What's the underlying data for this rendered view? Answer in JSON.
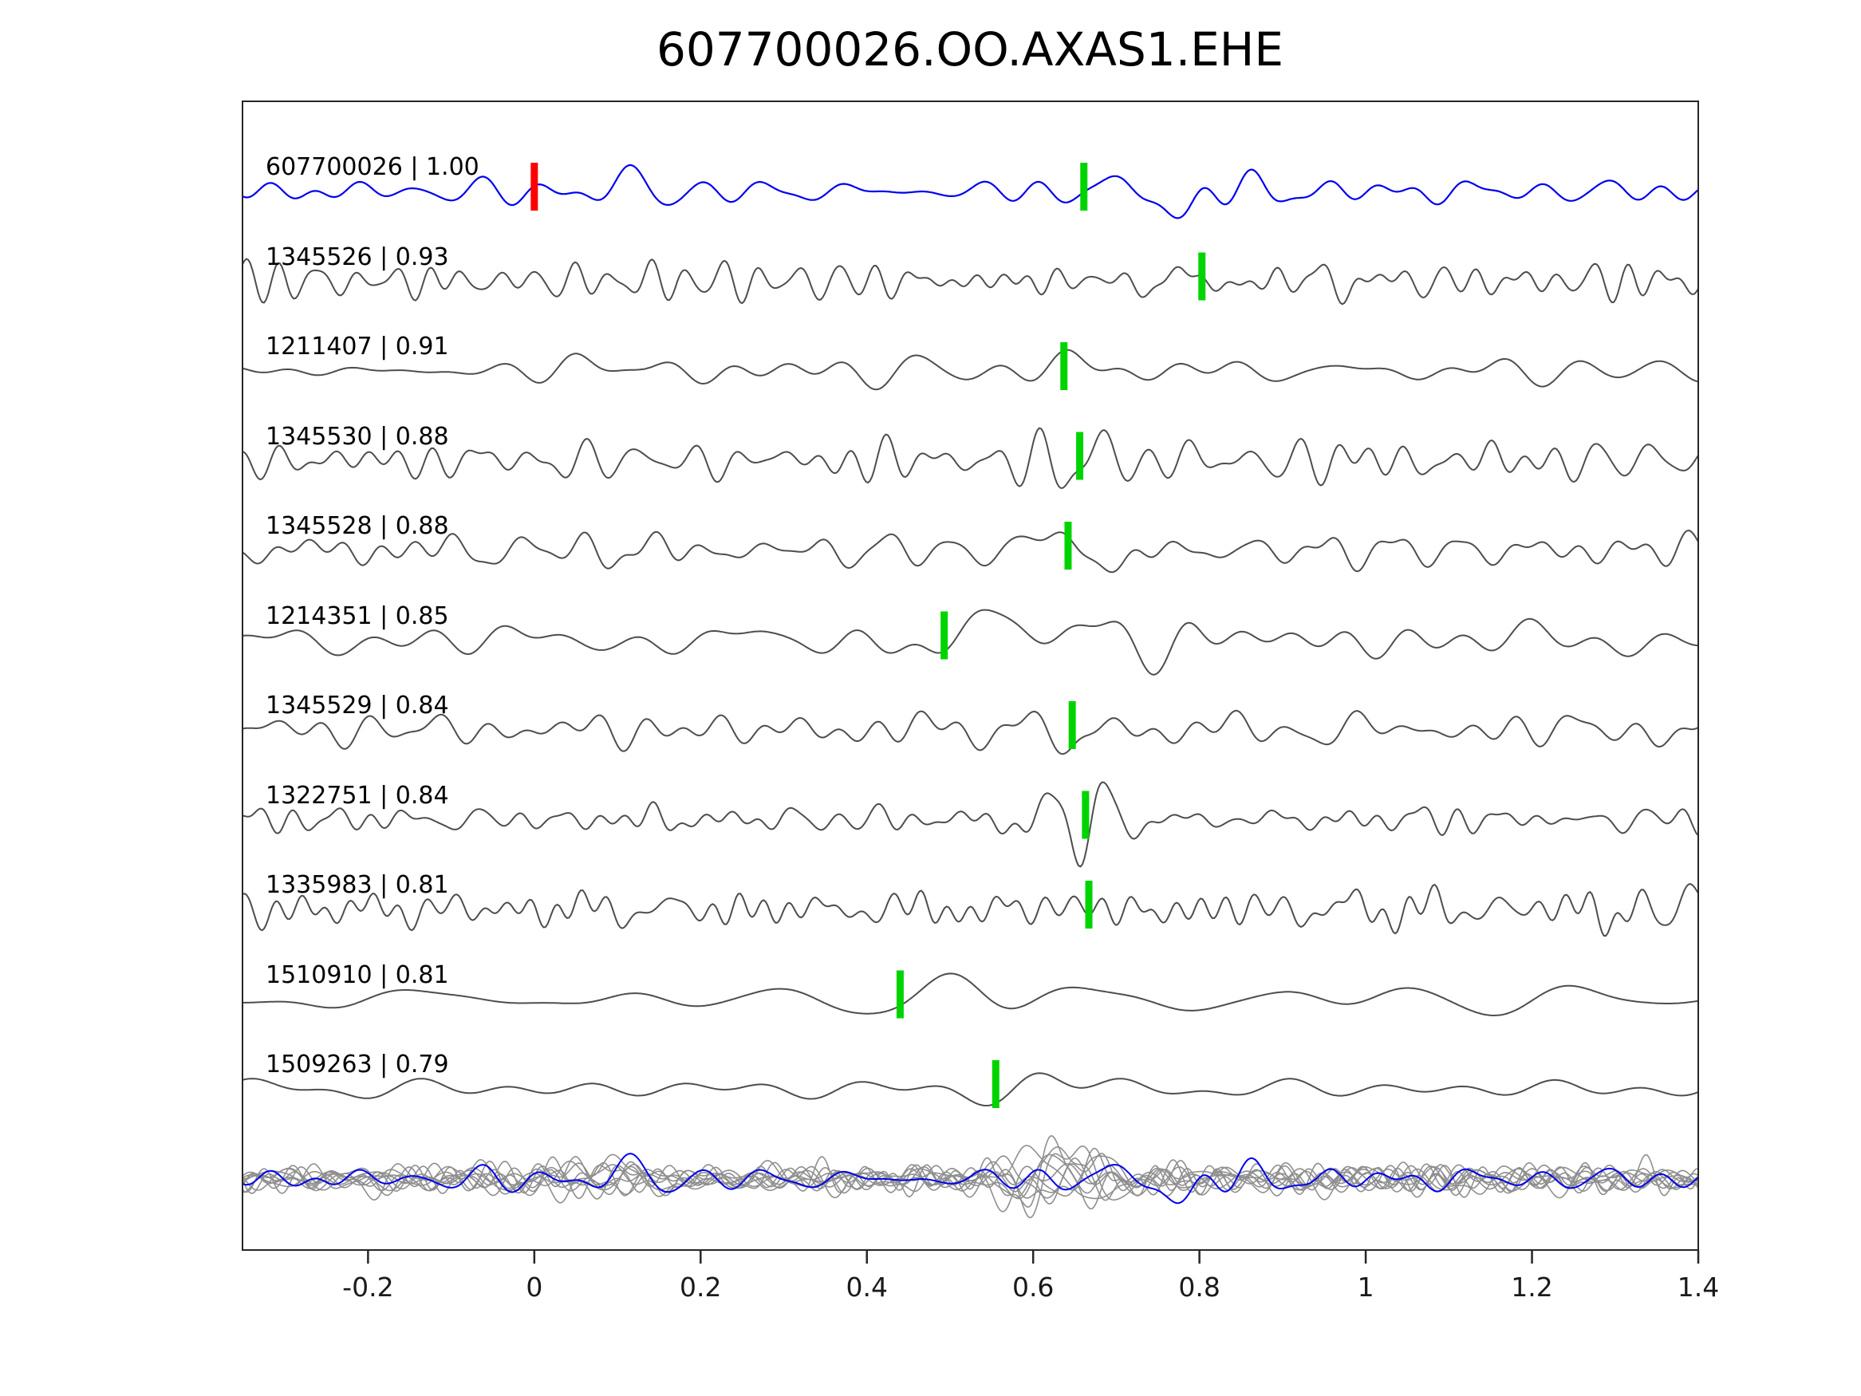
{
  "chart_data": {
    "type": "line",
    "title": "607700026.OO.AXAS1.EHE",
    "xlabel": "",
    "ylabel": "",
    "x_axis": {
      "min": -0.351,
      "max": 1.4,
      "ticks": [
        {
          "v": -0.2,
          "label": "-0.2"
        },
        {
          "v": 0,
          "label": "0"
        },
        {
          "v": 0.2,
          "label": "0.2"
        },
        {
          "v": 0.4,
          "label": "0.4"
        },
        {
          "v": 0.6,
          "label": "0.6"
        },
        {
          "v": 0.8,
          "label": "0.8"
        },
        {
          "v": 1,
          "label": "1"
        },
        {
          "v": 1.2,
          "label": "1.2"
        },
        {
          "v": 1.4,
          "label": "1.4"
        }
      ]
    },
    "colors": {
      "blue": "#0000ee",
      "gray": "#4d4d4d",
      "overlay_gray": "#8f8f8f",
      "green": "#00d400",
      "red": "#ff0000",
      "axis": "#262626",
      "text": "#000000"
    },
    "traces": [
      {
        "id": "607700026",
        "correlation": "1.00",
        "label": "607700026 | 1.00",
        "color": "blue",
        "seed": 11,
        "freq": 13,
        "amp": 27,
        "events": [
          {
            "x": 0.08,
            "w": 0.06,
            "amp": 0.9
          },
          {
            "x": 0.78,
            "w": 0.05,
            "amp": 2.5
          }
        ],
        "picks": [
          {
            "x": 0.661,
            "color": "green"
          },
          {
            "x": 0.0,
            "color": "red"
          }
        ]
      },
      {
        "id": "1345526",
        "correlation": "0.93",
        "label": "1345526 | 0.93",
        "color": "gray",
        "seed": 22,
        "freq": 21,
        "amp": 32,
        "events": [
          {
            "x": 0.78,
            "w": 0.15,
            "amp": 1.2
          }
        ],
        "picks": [
          {
            "x": 0.803,
            "color": "green"
          }
        ]
      },
      {
        "id": "1211407",
        "correlation": "0.91",
        "label": "1211407 | 0.91",
        "color": "gray",
        "seed": 33,
        "freq": 9,
        "amp": 30,
        "onset": 0.02,
        "events": [
          {
            "x": 0.09,
            "w": 0.05,
            "amp": 1.5
          },
          {
            "x": 0.67,
            "w": 0.07,
            "amp": 2.0
          }
        ],
        "picks": [
          {
            "x": 0.637,
            "color": "green"
          }
        ]
      },
      {
        "id": "1345530",
        "correlation": "0.88",
        "label": "1345530 | 0.88",
        "color": "gray",
        "seed": 44,
        "freq": 18,
        "amp": 34,
        "events": [
          {
            "x": 0.66,
            "w": 0.05,
            "amp": 1.8
          }
        ],
        "picks": [
          {
            "x": 0.656,
            "color": "green"
          }
        ]
      },
      {
        "id": "1345528",
        "correlation": "0.88",
        "label": "1345528 | 0.88",
        "color": "gray",
        "seed": 55,
        "freq": 15,
        "amp": 30,
        "events": [
          {
            "x": 0.66,
            "w": 0.05,
            "amp": 1.9
          }
        ],
        "picks": [
          {
            "x": 0.642,
            "color": "green"
          }
        ]
      },
      {
        "id": "1214351",
        "correlation": "0.85",
        "label": "1214351 | 0.85",
        "color": "gray",
        "seed": 66,
        "freq": 10,
        "amp": 28,
        "events": [
          {
            "x": 0.6,
            "w": 0.08,
            "amp": 2.3
          }
        ],
        "picks": [
          {
            "x": 0.493,
            "color": "green"
          }
        ]
      },
      {
        "id": "1345529",
        "correlation": "0.84",
        "label": "1345529 | 0.84",
        "color": "gray",
        "seed": 77,
        "freq": 16,
        "amp": 33,
        "events": [
          {
            "x": 0.66,
            "w": 0.05,
            "amp": 1.8
          }
        ],
        "picks": [
          {
            "x": 0.647,
            "color": "green"
          }
        ]
      },
      {
        "id": "1322751",
        "correlation": "0.84",
        "label": "1322751 | 0.84",
        "color": "gray",
        "seed": 88,
        "freq": 19,
        "amp": 32,
        "events": [
          {
            "x": 0.64,
            "w": 0.06,
            "amp": 1.7
          }
        ],
        "picks": [
          {
            "x": 0.663,
            "color": "green"
          }
        ]
      },
      {
        "id": "1335983",
        "correlation": "0.81",
        "label": "1335983 | 0.81",
        "color": "gray",
        "seed": 99,
        "freq": 22,
        "amp": 33,
        "events": [
          {
            "x": 0.65,
            "w": 0.06,
            "amp": 1.8
          },
          {
            "x": 1.32,
            "w": 0.09,
            "amp": 1.9
          }
        ],
        "picks": [
          {
            "x": 0.667,
            "color": "green"
          }
        ]
      },
      {
        "id": "1510910",
        "correlation": "0.81",
        "label": "1510910 | 0.81",
        "color": "gray",
        "seed": 110,
        "freq": 7,
        "amp": 27,
        "events": [
          {
            "x": 0.48,
            "w": 0.07,
            "amp": 2.4
          }
        ],
        "picks": [
          {
            "x": 0.44,
            "color": "green"
          }
        ]
      },
      {
        "id": "1509263",
        "correlation": "0.79",
        "label": "1509263 | 0.79",
        "color": "gray",
        "seed": 121,
        "freq": 6,
        "amp": 17,
        "events": [
          {
            "x": 0.575,
            "w": 0.045,
            "amp": 3.2
          }
        ],
        "picks": [
          {
            "x": 0.555,
            "color": "green"
          }
        ]
      }
    ],
    "overlay": {
      "gray": {
        "seeds": [
          201,
          202,
          203,
          204,
          205,
          206,
          207,
          208,
          209,
          210
        ],
        "freq": 17,
        "amp": 24,
        "events": [
          {
            "x": 0.08,
            "w": 0.06,
            "amp": 1.1
          },
          {
            "x": 0.63,
            "w": 0.07,
            "amp": 1.8
          }
        ]
      },
      "blue": {
        "seed": 11,
        "freq": 13,
        "amp": 26,
        "events": [
          {
            "x": 0.08,
            "w": 0.06,
            "amp": 0.9
          },
          {
            "x": 0.78,
            "w": 0.05,
            "amp": 2.3
          }
        ]
      }
    }
  }
}
